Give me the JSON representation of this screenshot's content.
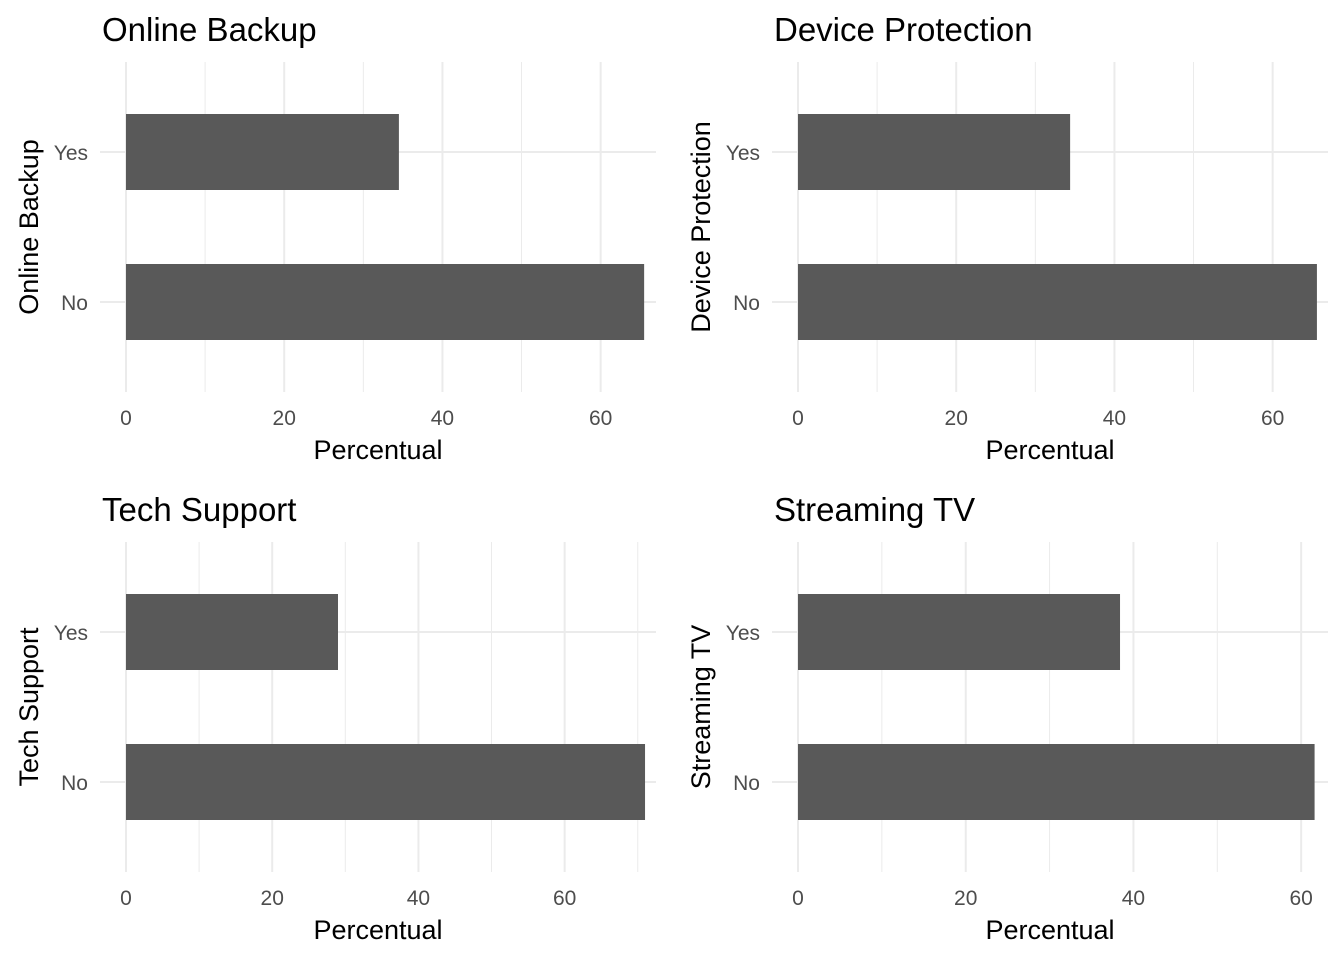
{
  "chart_data": [
    {
      "type": "bar",
      "orientation": "horizontal",
      "title": "Online Backup",
      "xlabel": "Percentual",
      "ylabel": "Online Backup",
      "categories": [
        "No",
        "Yes"
      ],
      "values": [
        65.5,
        34.5
      ],
      "xlim": [
        0,
        67
      ],
      "xticks": [
        0,
        20,
        40,
        60
      ],
      "grid": true
    },
    {
      "type": "bar",
      "orientation": "horizontal",
      "title": "Device Protection",
      "xlabel": "Percentual",
      "ylabel": "Device Protection",
      "categories": [
        "No",
        "Yes"
      ],
      "values": [
        65.6,
        34.4
      ],
      "xlim": [
        0,
        67
      ],
      "xticks": [
        0,
        20,
        40,
        60
      ],
      "grid": true
    },
    {
      "type": "bar",
      "orientation": "horizontal",
      "title": "Tech Support",
      "xlabel": "Percentual",
      "ylabel": "Tech Support",
      "categories": [
        "No",
        "Yes"
      ],
      "values": [
        71.0,
        29.0
      ],
      "xlim": [
        0,
        72.5
      ],
      "xticks": [
        0,
        20,
        40,
        60
      ],
      "grid": true
    },
    {
      "type": "bar",
      "orientation": "horizontal",
      "title": "Streaming TV",
      "xlabel": "Percentual",
      "ylabel": "Streaming TV",
      "categories": [
        "No",
        "Yes"
      ],
      "values": [
        61.6,
        38.4
      ],
      "xlim": [
        0,
        63.2
      ],
      "xticks": [
        0,
        20,
        40,
        60
      ],
      "grid": true
    }
  ]
}
